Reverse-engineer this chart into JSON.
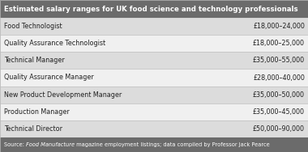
{
  "title": "Estimated salary ranges for UK food science and technology professionals",
  "rows": [
    [
      "Food Technologist",
      "£18,000–24,000"
    ],
    [
      "Quality Assurance Technologist",
      "£18,000–25,000"
    ],
    [
      "Technical Manager",
      "£35,000–55,000"
    ],
    [
      "Quality Assurance Manager",
      "£28,000–40,000"
    ],
    [
      "New Product Development Manager",
      "£35,000–50,000"
    ],
    [
      "Production Manager",
      "£35,000–45,000"
    ],
    [
      "Technical Director",
      "£50,000–90,000"
    ]
  ],
  "source_pre": "Source: ",
  "source_italic": "Food Manufacture",
  "source_post": " magazine employment listings; data compiled by Professor Jack Pearce",
  "title_bg": "#6b6b6b",
  "title_color": "#ffffff",
  "row_bg_light": "#f0f0f0",
  "row_bg_dark": "#dcdcdc",
  "source_bg": "#6b6b6b",
  "source_color": "#ffffff",
  "border_color": "#bbbbbb",
  "text_color": "#222222",
  "title_fontsize": 6.2,
  "row_fontsize": 5.8,
  "source_fontsize": 4.8
}
